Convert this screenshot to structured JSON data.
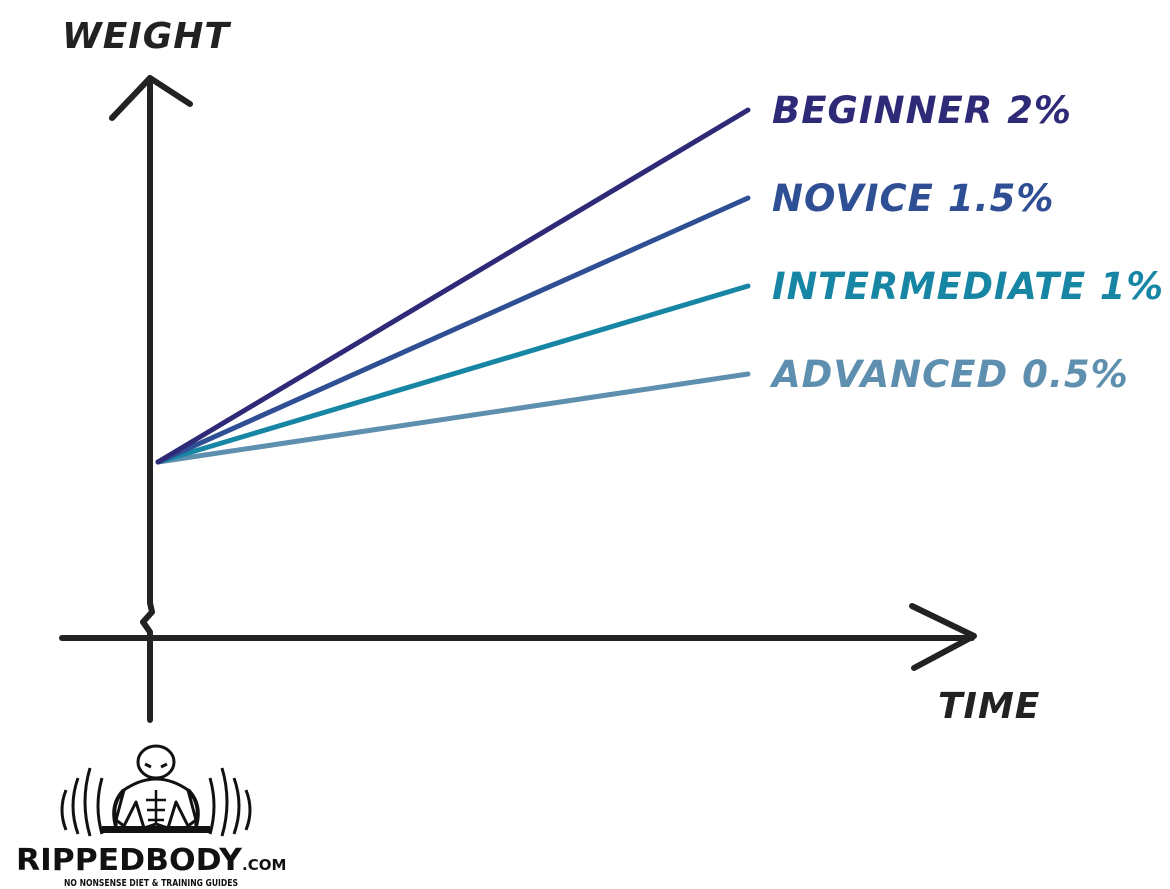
{
  "chart_data": {
    "type": "line",
    "title": "",
    "xlabel": "TIME",
    "ylabel": "WEIGHT",
    "x": [
      0,
      1
    ],
    "grid": false,
    "legend": "inline-right",
    "series": [
      {
        "name": "BEGINNER 2%",
        "rate_percent": 2,
        "values": [
          0,
          2
        ],
        "color": "#2e2a78"
      },
      {
        "name": "NOVICE 1.5%",
        "rate_percent": 1.5,
        "values": [
          0,
          1.5
        ],
        "color": "#2f4f95"
      },
      {
        "name": "INTERMEDIATE 1%",
        "rate_percent": 1,
        "values": [
          0,
          1
        ],
        "color": "#1786a4"
      },
      {
        "name": "ADVANCED 0.5%",
        "rate_percent": 0.5,
        "values": [
          0,
          0.5
        ],
        "color": "#5e8fae"
      }
    ]
  },
  "logo": {
    "brand": "RIPPEDBODY",
    "domain": ".COM",
    "tagline": "NO NONSENSE DIET & TRAINING GUIDES",
    "icon": "bodybuilder-barbell-icon"
  }
}
